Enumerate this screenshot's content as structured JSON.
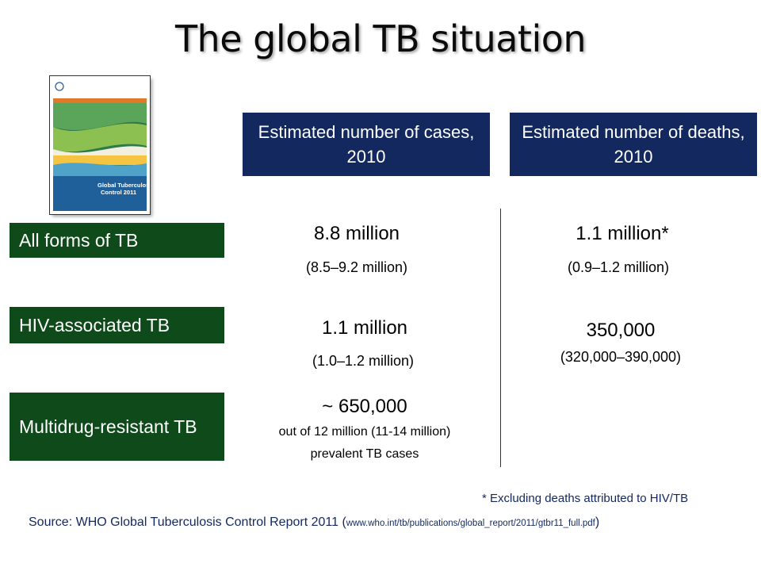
{
  "title": "The global TB situation",
  "cover": {
    "org": "World Health Organization",
    "title_line1": "Global Tuberculosis",
    "title_line2": "Control 2011"
  },
  "headers": {
    "cases": "Estimated number of cases, 2010",
    "deaths": "Estimated number of deaths, 2010"
  },
  "rows": [
    {
      "label": "All forms of TB",
      "cases_value": "8.8 million",
      "cases_range": "(8.5–9.2 million)",
      "deaths_value": "1.1 million*",
      "deaths_range": "(0.9–1.2 million)"
    },
    {
      "label": "HIV-associated TB",
      "cases_value": "1.1 million",
      "cases_range": "(1.0–1.2 million)",
      "deaths_value": "350,000",
      "deaths_range": "(320,000–390,000)"
    },
    {
      "label": "Multidrug-resistant TB",
      "cases_value": "~ 650,000",
      "cases_note1": "out of 12 million (11-14 million)",
      "cases_note2": "prevalent TB cases"
    }
  ],
  "footnote": "* Excluding deaths attributed to HIV/TB",
  "source": {
    "prefix": "Source: WHO Global Tuberculosis Control Report 2011 (",
    "url": "www.who.int/tb/publications/global_report/2011/gtbr11_full.pdf",
    "suffix": ")"
  },
  "colors": {
    "header_bg": "#13285e",
    "label_bg": "#0f4a1a",
    "text_accent": "#13285e"
  }
}
